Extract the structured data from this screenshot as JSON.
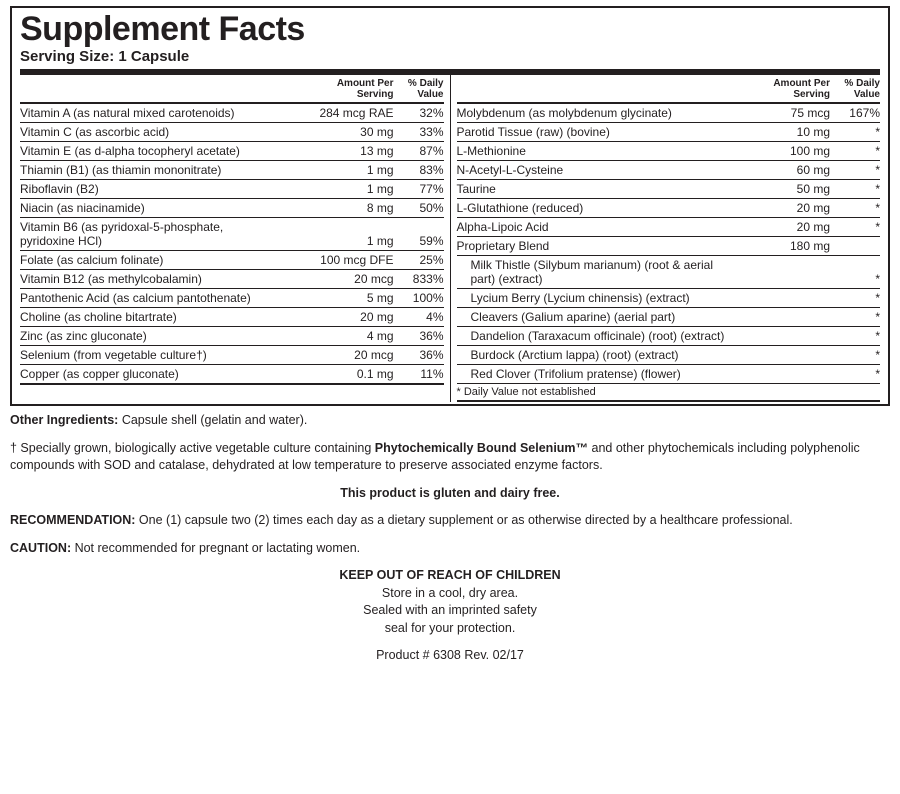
{
  "title": "Supplement Facts",
  "serving": "Serving Size: 1 Capsule",
  "hdr_amount": "Amount Per Serving",
  "hdr_dv": "% Daily Value",
  "left": [
    {
      "n": "Vitamin A (as natural mixed carotenoids)",
      "a": "284 mcg RAE",
      "d": "32%"
    },
    {
      "n": "Vitamin C (as ascorbic acid)",
      "a": "30 mg",
      "d": "33%"
    },
    {
      "n": "Vitamin E (as d-alpha tocopheryl acetate)",
      "a": "13 mg",
      "d": "87%"
    },
    {
      "n": "Thiamin (B1) (as thiamin mononitrate)",
      "a": "1 mg",
      "d": "83%"
    },
    {
      "n": "Riboflavin (B2)",
      "a": "1 mg",
      "d": "77%"
    },
    {
      "n": "Niacin (as niacinamide)",
      "a": "8 mg",
      "d": "50%"
    },
    {
      "n": "Vitamin B6 (as pyridoxal-5-phosphate,\n  pyridoxine HCl)",
      "a": "1 mg",
      "d": "59%"
    },
    {
      "n": "Folate (as calcium folinate)",
      "a": "100 mcg DFE",
      "d": "25%"
    },
    {
      "n": "Vitamin B12 (as methylcobalamin)",
      "a": "20 mcg",
      "d": "833%"
    },
    {
      "n": "Pantothenic Acid (as calcium pantothenate)",
      "a": "5 mg",
      "d": "100%"
    },
    {
      "n": "Choline (as choline bitartrate)",
      "a": "20 mg",
      "d": "4%"
    },
    {
      "n": "Zinc (as zinc gluconate)",
      "a": "4 mg",
      "d": "36%"
    },
    {
      "n": "Selenium (from vegetable culture†)",
      "a": "20 mcg",
      "d": "36%"
    },
    {
      "n": "Copper (as copper gluconate)",
      "a": "0.1 mg",
      "d": "11%"
    }
  ],
  "right": [
    {
      "n": "Molybdenum (as molybdenum glycinate)",
      "a": "75 mcg",
      "d": "167%"
    },
    {
      "n": "Parotid Tissue (raw) (bovine)",
      "a": "10 mg",
      "d": "*"
    },
    {
      "n": "L-Methionine",
      "a": "100 mg",
      "d": "*"
    },
    {
      "n": "N-Acetyl-L-Cysteine",
      "a": "60 mg",
      "d": "*"
    },
    {
      "n": "Taurine",
      "a": "50 mg",
      "d": "*"
    },
    {
      "n": "L-Glutathione (reduced)",
      "a": "20 mg",
      "d": "*"
    },
    {
      "n": "Alpha-Lipoic Acid",
      "a": "20 mg",
      "d": "*"
    },
    {
      "n": "Proprietary Blend",
      "a": "180 mg",
      "d": ""
    },
    {
      "n": "Milk Thistle (Silybum marianum) (root & aerial part) (extract)",
      "a": "",
      "d": "*",
      "sub": true
    },
    {
      "n": "Lycium Berry (Lycium chinensis) (extract)",
      "a": "",
      "d": "*",
      "sub": true
    },
    {
      "n": "Cleavers (Galium aparine) (aerial part)",
      "a": "",
      "d": "*",
      "sub": true
    },
    {
      "n": "Dandelion (Taraxacum officinale) (root) (extract)",
      "a": "",
      "d": "*",
      "sub": true
    },
    {
      "n": "Burdock (Arctium lappa) (root) (extract)",
      "a": "",
      "d": "*",
      "sub": true
    },
    {
      "n": "Red Clover (Trifolium pratense) (flower)",
      "a": "",
      "d": "*",
      "sub": true
    }
  ],
  "dv_footnote": "* Daily Value not established",
  "other_label": "Other Ingredients:",
  "other_text": " Capsule shell (gelatin and water).",
  "dagger": "† Specially grown, biologically active vegetable culture containing ",
  "dagger_bold": "Phytochemically Bound Selenium™",
  "dagger2": " and other phytochemicals including polyphenolic compounds with SOD and catalase, dehydrated at low temperature to preserve associated enzyme factors.",
  "gluten": "This product is gluten and dairy free.",
  "rec_label": "RECOMMENDATION:",
  "rec_text": " One (1) capsule two (2) times each day as a dietary supplement or as otherwise directed by a healthcare professional.",
  "caution_label": "CAUTION:",
  "caution_text": " Not recommended for pregnant or lactating women.",
  "keep": "KEEP OUT OF REACH OF CHILDREN",
  "store1": "Store in a cool, dry area.",
  "store2": "Sealed with an imprinted safety",
  "store3": "seal for your protection.",
  "product": "Product # 6308    Rev. 02/17"
}
